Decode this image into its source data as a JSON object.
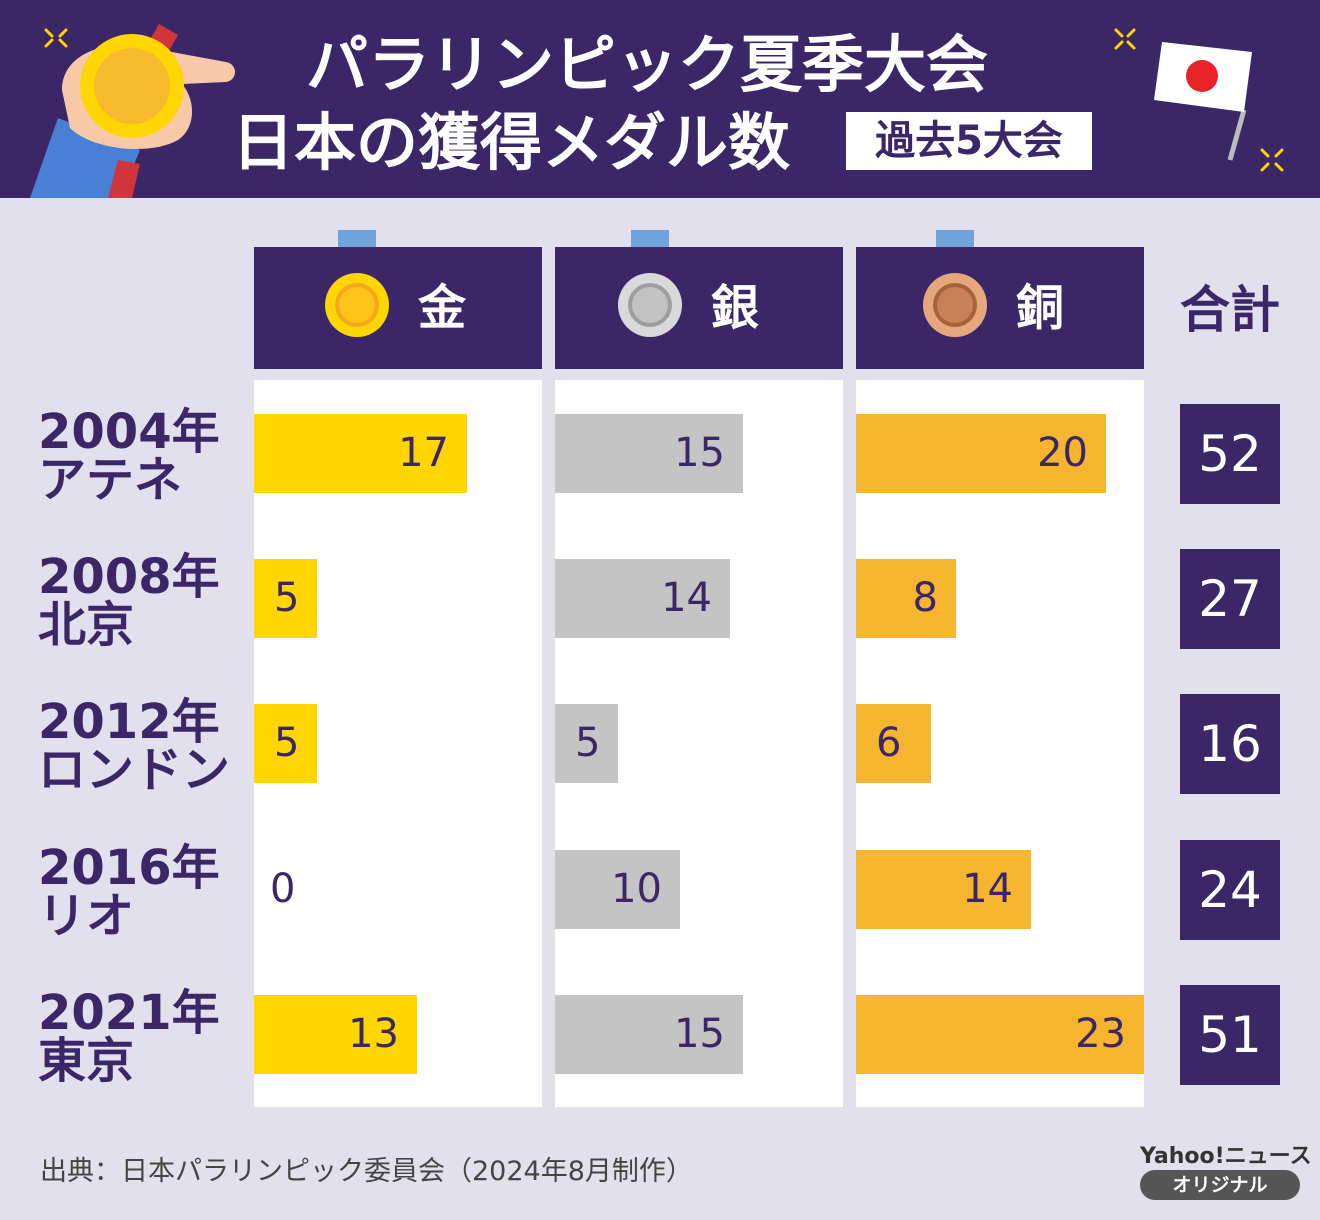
{
  "header": {
    "title_line1": "パラリンピック夏季大会",
    "title_line2": "日本の獲得メダル数",
    "badge": "過去5大会"
  },
  "columns": {
    "gold": "金",
    "silver": "銀",
    "bronze": "銅",
    "total": "合計"
  },
  "colors": {
    "navy": "#3b2768",
    "gold": "#ffd600",
    "silver": "#c4c4c4",
    "bronze": "#f5b52e",
    "tab": "#6ea3dc",
    "background": "#e2e0ec"
  },
  "chart_data": {
    "type": "bar",
    "title": "パラリンピック夏季大会 日本の獲得メダル数 過去5大会",
    "categories": [
      {
        "year": "2004年",
        "city": "アテネ"
      },
      {
        "year": "2008年",
        "city": "北京"
      },
      {
        "year": "2012年",
        "city": "ロンドン"
      },
      {
        "year": "2016年",
        "city": "リオ"
      },
      {
        "year": "2021年",
        "city": "東京"
      }
    ],
    "series": [
      {
        "name": "金",
        "values": [
          17,
          5,
          5,
          0,
          13
        ]
      },
      {
        "name": "銀",
        "values": [
          15,
          14,
          5,
          10,
          15
        ]
      },
      {
        "name": "銅",
        "values": [
          20,
          8,
          6,
          14,
          23
        ]
      }
    ],
    "totals": [
      52,
      27,
      16,
      24,
      51
    ],
    "xlim": [
      0,
      23
    ]
  },
  "footer": {
    "source": "出典：日本パラリンピック委員会（2024年8月制作）",
    "logo": "Yahoo!ニュース",
    "logo_sub": "オリジナル"
  }
}
